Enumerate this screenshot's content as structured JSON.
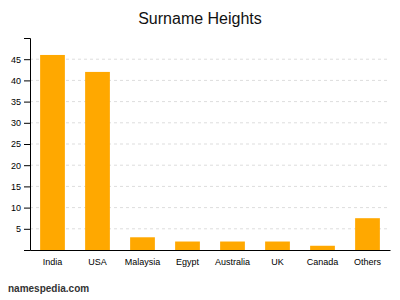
{
  "chart_data": {
    "type": "bar",
    "title": "Surname Heights",
    "categories": [
      "India",
      "USA",
      "Malaysia",
      "Egypt",
      "Australia",
      "UK",
      "Canada",
      "Others"
    ],
    "values": [
      46,
      42,
      3,
      2,
      2,
      2,
      1,
      7.5
    ],
    "color": "#FFA800",
    "ylim": [
      0,
      50
    ],
    "yticks": [
      5,
      10,
      15,
      20,
      25,
      30,
      35,
      40,
      45
    ],
    "grid": true,
    "annotations": [
      "namespedia.com"
    ]
  }
}
